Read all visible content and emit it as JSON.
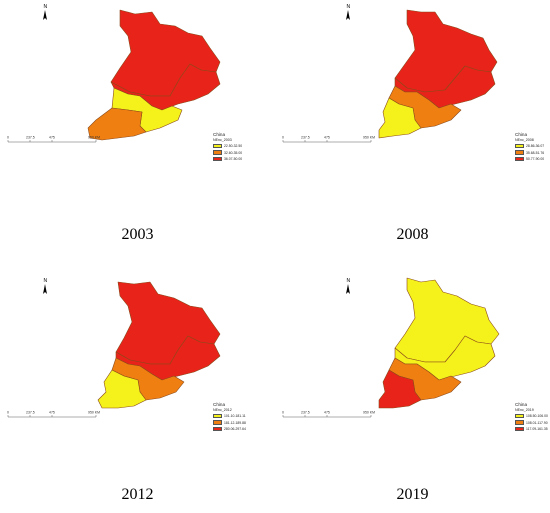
{
  "colors": {
    "low": "#f5f11a",
    "mid": "#f07f12",
    "high": "#e8231a",
    "border": "#8a4a1a"
  },
  "north_arrow": {
    "letter": "N"
  },
  "scale_bar": {
    "labels": [
      "0",
      "237.5",
      "475",
      "950 KM"
    ]
  },
  "panels": [
    {
      "year": "2003",
      "legend_title": "China",
      "field": "NEnc_2003",
      "classes": [
        "22.50-32.50",
        "32.60-35.00",
        "36.07-50.00"
      ],
      "regions": {
        "north": "high",
        "middle": "high",
        "east": "low",
        "southwest": "mid"
      }
    },
    {
      "year": "2008",
      "legend_title": "China",
      "field": "NEnc_2008",
      "classes": [
        "28.86-36.07",
        "35.68-51.76",
        "50.77-90.00"
      ],
      "regions": {
        "north": "high",
        "middle": "high",
        "east": "mid",
        "southwest": "low"
      }
    },
    {
      "year": "2012",
      "legend_title": "China",
      "field": "NEnc_2012",
      "classes": [
        "101.10-181.11",
        "181.12-189.88",
        "280.06-297.64"
      ],
      "regions": {
        "north": "high",
        "middle": "high",
        "east": "mid",
        "southwest": "low"
      }
    },
    {
      "year": "2019",
      "legend_title": "China",
      "field": "NEnc_2019",
      "classes": [
        "108.50-106.00",
        "108.01-117.90",
        "117.09-161.35"
      ],
      "regions": {
        "north": "low",
        "middle": "low",
        "east": "mid",
        "southwest": "high"
      }
    }
  ]
}
